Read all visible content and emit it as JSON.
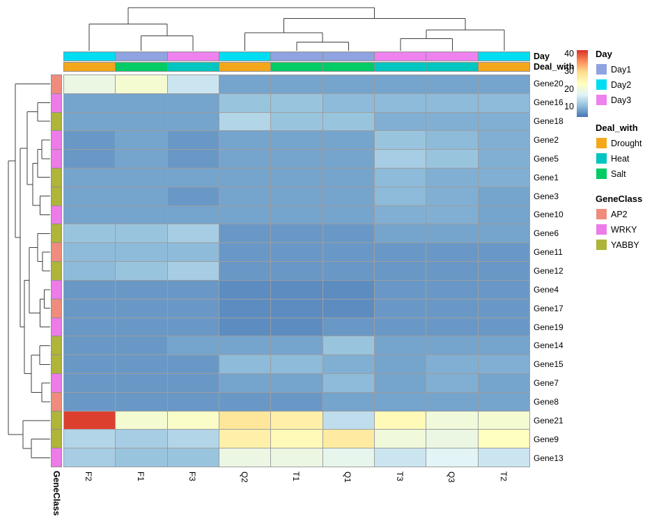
{
  "annotation_labels": {
    "day": "Day",
    "deal_with": "Deal_with",
    "gene_class": "GeneClass"
  },
  "colors": {
    "Day1": "#8FA3E0",
    "Day2": "#00DDF2",
    "Day3": "#EE82EE",
    "Drought": "#F5A71C",
    "Heat": "#00C5C0",
    "Salt": "#00CB65",
    "AP2": "#F08C7D",
    "WRKY": "#ED7BE8",
    "YABBY": "#AFB43B",
    "dendrogram_line": "#3d3d3d",
    "grid_line": "#9e9e9e"
  },
  "legend": {
    "scale_ticks": [
      40,
      30,
      20,
      10
    ],
    "groups": [
      {
        "title": "Day",
        "items": [
          {
            "label": "Day1",
            "color_key": "Day1"
          },
          {
            "label": "Day2",
            "color_key": "Day2"
          },
          {
            "label": "Day3",
            "color_key": "Day3"
          }
        ]
      },
      {
        "title": "Deal_with",
        "items": [
          {
            "label": "Drought",
            "color_key": "Drought"
          },
          {
            "label": "Heat",
            "color_key": "Heat"
          },
          {
            "label": "Salt",
            "color_key": "Salt"
          }
        ]
      },
      {
        "title": "GeneClass",
        "items": [
          {
            "label": "AP2",
            "color_key": "AP2"
          },
          {
            "label": "WRKY",
            "color_key": "WRKY"
          },
          {
            "label": "YABBY",
            "color_key": "YABBY"
          }
        ]
      }
    ]
  },
  "chart_data": {
    "type": "heatmap",
    "columns": [
      "F2",
      "F1",
      "F3",
      "Q2",
      "T1",
      "Q1",
      "T3",
      "Q3",
      "T2"
    ],
    "rows": [
      "Gene20",
      "Gene16",
      "Gene18",
      "Gene2",
      "Gene5",
      "Gene1",
      "Gene3",
      "Gene10",
      "Gene6",
      "Gene11",
      "Gene12",
      "Gene4",
      "Gene17",
      "Gene19",
      "Gene14",
      "Gene15",
      "Gene7",
      "Gene8",
      "Gene21",
      "Gene9",
      "Gene13"
    ],
    "values": [
      [
        19,
        21,
        15,
        8,
        8,
        8,
        8,
        8,
        8
      ],
      [
        8,
        8,
        8,
        11,
        11,
        10,
        10,
        10,
        10
      ],
      [
        8,
        8,
        8,
        13,
        11,
        11,
        9,
        9,
        9
      ],
      [
        7,
        8,
        7,
        8,
        8,
        8,
        11,
        10,
        9
      ],
      [
        7,
        8,
        7,
        8,
        8,
        8,
        12,
        11,
        9
      ],
      [
        8,
        8,
        8,
        8,
        8,
        8,
        10,
        9,
        9
      ],
      [
        8,
        8,
        7,
        8,
        8,
        8,
        10,
        9,
        8
      ],
      [
        8,
        8,
        8,
        8,
        8,
        8,
        9,
        9,
        8
      ],
      [
        11,
        11,
        12,
        7,
        7,
        7,
        8,
        8,
        8
      ],
      [
        10,
        10,
        10,
        7,
        7,
        7,
        7,
        7,
        7
      ],
      [
        10,
        11,
        12,
        7,
        7,
        7,
        7,
        7,
        7
      ],
      [
        7,
        7,
        7,
        6,
        6,
        6,
        7,
        7,
        7
      ],
      [
        7,
        7,
        7,
        6,
        6,
        6,
        7,
        7,
        7
      ],
      [
        7,
        7,
        7,
        6,
        6,
        7,
        7,
        7,
        7
      ],
      [
        7,
        7,
        8,
        8,
        8,
        11,
        8,
        8,
        8
      ],
      [
        7,
        7,
        7,
        10,
        10,
        9,
        8,
        9,
        9
      ],
      [
        7,
        7,
        7,
        8,
        8,
        10,
        8,
        9,
        8
      ],
      [
        7,
        7,
        7,
        7,
        7,
        8,
        8,
        8,
        8
      ],
      [
        41,
        21,
        22,
        28,
        26,
        14,
        24,
        20,
        21
      ],
      [
        13,
        12,
        13,
        26,
        24,
        27,
        20,
        19,
        23
      ],
      [
        12,
        11,
        11,
        19,
        19,
        18,
        15,
        17,
        15
      ]
    ],
    "col_annotations": {
      "Day": [
        "Day2",
        "Day1",
        "Day3",
        "Day2",
        "Day1",
        "Day1",
        "Day3",
        "Day3",
        "Day2"
      ],
      "Deal_with": [
        "Drought",
        "Salt",
        "Heat",
        "Drought",
        "Salt",
        "Salt",
        "Heat",
        "Heat",
        "Drought"
      ]
    },
    "row_annotations": {
      "GeneClass": [
        "AP2",
        "WRKY",
        "YABBY",
        "WRKY",
        "WRKY",
        "YABBY",
        "YABBY",
        "WRKY",
        "YABBY",
        "AP2",
        "YABBY",
        "WRKY",
        "AP2",
        "WRKY",
        "YABBY",
        "YABBY",
        "WRKY",
        "AP2",
        "YABBY",
        "YABBY",
        "WRKY"
      ]
    },
    "color_scale": {
      "stops": [
        "#4575B4",
        "#91BFDB",
        "#E0F3F8",
        "#FFFFBF",
        "#FEE090",
        "#FC8D59",
        "#D73027"
      ],
      "min": 4,
      "max": 42
    },
    "col_dendrogram": {
      "h": 1.0,
      "c": [
        {
          "h": 0.62,
          "c": [
            "F2",
            {
              "h": 0.35,
              "c": [
                "F1",
                "F3"
              ]
            }
          ]
        },
        {
          "h": 0.75,
          "c": [
            {
              "h": 0.42,
              "c": [
                "Q2",
                {
                  "h": 0.2,
                  "c": [
                    "T1",
                    "Q1"
                  ]
                }
              ]
            },
            {
              "h": 0.48,
              "c": [
                {
                  "h": 0.28,
                  "c": [
                    "T3",
                    "Q3"
                  ]
                },
                "T2"
              ]
            }
          ]
        }
      ]
    },
    "row_dendrogram": {
      "h": 1.0,
      "c": [
        {
          "h": 0.83,
          "c": [
            "Gene20",
            {
              "h": 0.72,
              "c": [
                {
                  "h": 0.55,
                  "c": [
                    {
                      "h": 0.3,
                      "c": [
                        "Gene16",
                        "Gene18"
                      ]
                    },
                    {
                      "h": 0.42,
                      "c": [
                        {
                          "h": 0.3,
                          "c": [
                            {
                              "h": 0.2,
                              "c": [
                                "Gene2",
                                "Gene5"
                              ]
                            },
                            "Gene1"
                          ]
                        },
                        {
                          "h": 0.24,
                          "c": [
                            "Gene3",
                            "Gene10"
                          ]
                        }
                      ]
                    }
                  ]
                },
                {
                  "h": 0.62,
                  "c": [
                    {
                      "h": 0.5,
                      "c": [
                        {
                          "h": 0.3,
                          "c": [
                            "Gene6",
                            {
                              "h": 0.18,
                              "c": [
                                "Gene11",
                                "Gene12"
                              ]
                            }
                          ]
                        },
                        {
                          "h": 0.24,
                          "c": [
                            {
                              "h": 0.14,
                              "c": [
                                "Gene4",
                                "Gene17"
                              ]
                            },
                            "Gene19"
                          ]
                        }
                      ]
                    },
                    {
                      "h": 0.45,
                      "c": [
                        {
                          "h": 0.25,
                          "c": [
                            "Gene14",
                            "Gene15"
                          ]
                        },
                        {
                          "h": 0.2,
                          "c": [
                            "Gene7",
                            "Gene8"
                          ]
                        }
                      ]
                    }
                  ]
                }
              ]
            }
          ]
        },
        {
          "h": 0.65,
          "c": [
            "Gene21",
            {
              "h": 0.45,
              "c": [
                "Gene9",
                "Gene13"
              ]
            }
          ]
        }
      ]
    }
  }
}
